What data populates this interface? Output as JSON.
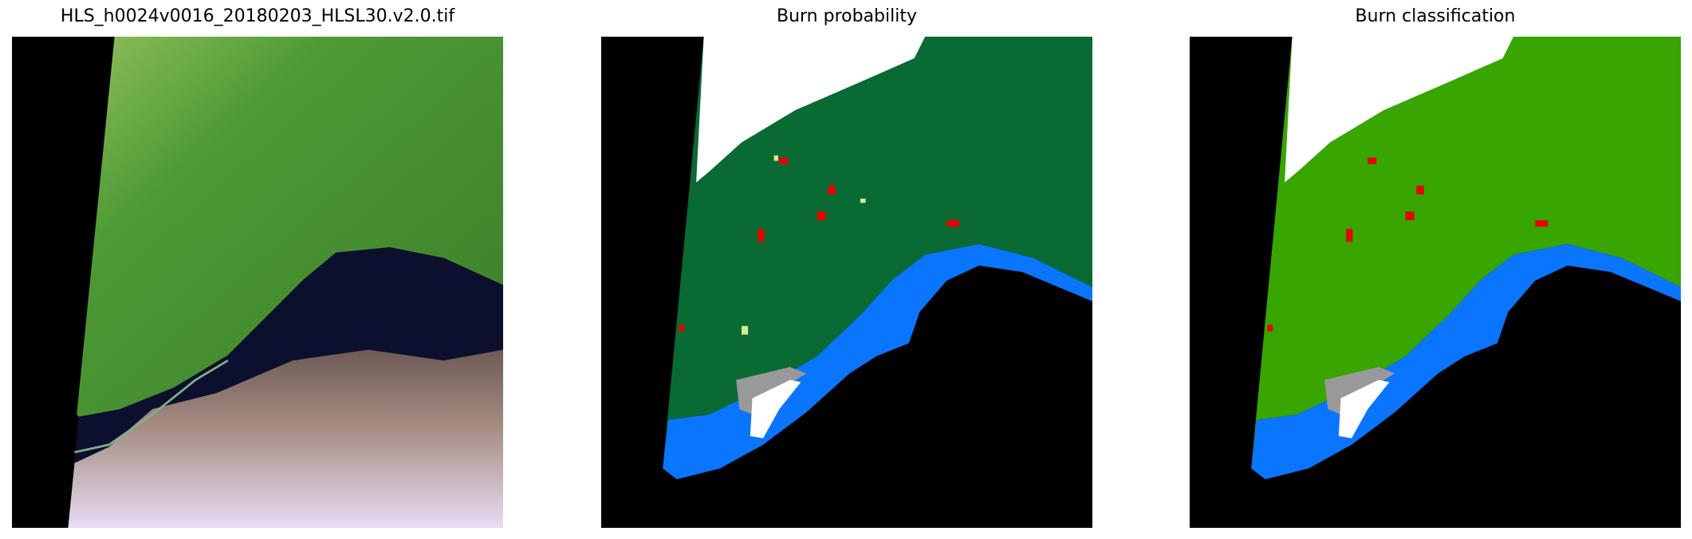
{
  "panels": [
    {
      "title": "HLS_h0024v0016_20180203_HLSL30.v2.0.tif",
      "type": "rgb-satellite-image"
    },
    {
      "title": "Burn probability",
      "type": "classified-map"
    },
    {
      "title": "Burn classification",
      "type": "classified-map"
    }
  ],
  "colors": {
    "nodata": "#000000",
    "cloud": "#ffffff",
    "cloud_shadow": "#999999",
    "water": "#0a75ff",
    "shallow_water": "#19e6f0",
    "burn": "#e60000",
    "probability_land": "#0a6a34",
    "probability_low": "#d8e890",
    "classification_land": "#38a500",
    "rgb_land": "#4a8f30",
    "rgb_ocean": "#0c0f2e",
    "rgb_cloud": "#b8a0b8"
  }
}
